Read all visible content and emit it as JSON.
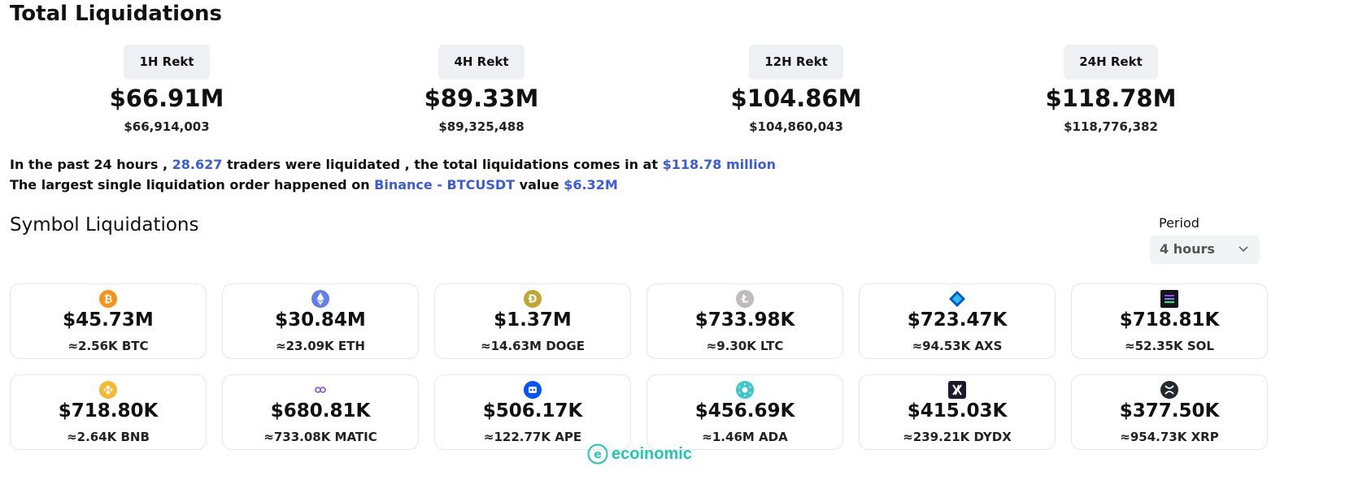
{
  "header": {
    "title": "Total Liquidations"
  },
  "rekt": [
    {
      "label": "1H Rekt",
      "big": "$66.91M",
      "small": "$66,914,003"
    },
    {
      "label": "4H Rekt",
      "big": "$89.33M",
      "small": "$89,325,488"
    },
    {
      "label": "12H Rekt",
      "big": "$104.86M",
      "small": "$104,860,043"
    },
    {
      "label": "24H Rekt",
      "big": "$118.78M",
      "small": "$118,776,382"
    }
  ],
  "summary": {
    "line1_a": "In the past 24 hours ,",
    "traders": "28.627",
    "line1_b": "traders were liquidated , the total liquidations comes in at",
    "total": "$118.78 million",
    "line2_a": "The largest single liquidation order happened on",
    "exchange_pair": "Binance - BTCUSDT",
    "line2_b": "value",
    "value": "$6.32M"
  },
  "symbols_section": {
    "title": "Symbol Liquidations",
    "period_label": "Period",
    "period_value": "4 hours"
  },
  "symbols": [
    {
      "amount": "$45.73M",
      "qty": "≈2.56K BTC",
      "icon": "btc-icon",
      "color": "#f7931a"
    },
    {
      "amount": "$30.84M",
      "qty": "≈23.09K ETH",
      "icon": "eth-icon",
      "color": "#627eea"
    },
    {
      "amount": "$1.37M",
      "qty": "≈14.63M DOGE",
      "icon": "doge-icon",
      "color": "#c2a633"
    },
    {
      "amount": "$733.98K",
      "qty": "≈9.30K LTC",
      "icon": "ltc-icon",
      "color": "#bfbbbb"
    },
    {
      "amount": "$723.47K",
      "qty": "≈94.53K AXS",
      "icon": "axs-icon",
      "color": "#0055d5"
    },
    {
      "amount": "$718.81K",
      "qty": "≈52.35K SOL",
      "icon": "sol-icon",
      "color": "#14151a"
    },
    {
      "amount": "$718.80K",
      "qty": "≈2.64K BNB",
      "icon": "bnb-icon",
      "color": "#f3ba2f"
    },
    {
      "amount": "$680.81K",
      "qty": "≈733.08K MATIC",
      "icon": "matic-icon",
      "color": "#8247e5"
    },
    {
      "amount": "$506.17K",
      "qty": "≈122.77K APE",
      "icon": "ape-icon",
      "color": "#0054f9"
    },
    {
      "amount": "$456.69K",
      "qty": "≈1.46M ADA",
      "icon": "ada-icon",
      "color": "#3cc8c8"
    },
    {
      "amount": "$415.03K",
      "qty": "≈239.21K DYDX",
      "icon": "dydx-icon",
      "color": "#1a1b2e"
    },
    {
      "amount": "$377.50K",
      "qty": "≈954.73K XRP",
      "icon": "xrp-icon",
      "color": "#23292f"
    }
  ],
  "watermark": {
    "text": "ecoinomic",
    "color": "#20c7b3"
  }
}
